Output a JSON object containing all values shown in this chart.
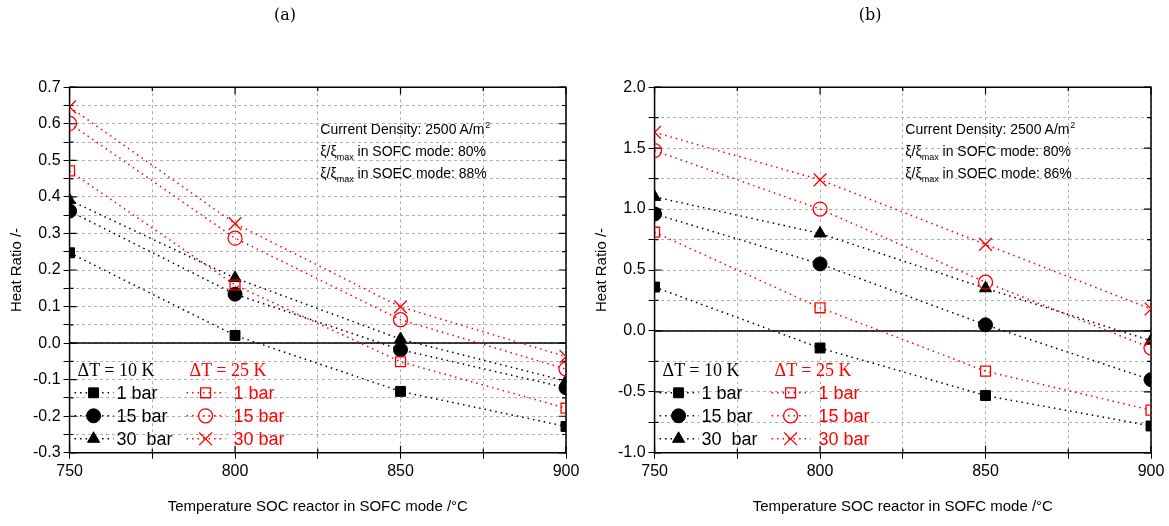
{
  "chart_data": [
    {
      "type": "line",
      "title": "(a)",
      "xlabel": "Temperature SOC reactor in SOFC mode /°C",
      "ylabel": "Heat Ratio /-",
      "x": [
        750,
        800,
        850,
        900
      ],
      "xlim": [
        750,
        900
      ],
      "xticks": [
        750,
        {
          "value": 775,
          "label": null
        },
        800,
        {
          "value": 825,
          "label": null
        },
        850,
        {
          "value": 875,
          "label": null
        },
        900
      ],
      "ylim": [
        -0.3,
        0.7
      ],
      "yticks": [
        -0.3,
        {
          "value": -0.25,
          "label": null
        },
        -0.2,
        {
          "value": -0.15,
          "label": null
        },
        -0.1,
        {
          "value": -0.05,
          "label": null
        },
        {
          "value": 0,
          "label": "0.0"
        },
        {
          "value": 0.05,
          "label": null
        },
        0.1,
        {
          "value": 0.15,
          "label": null
        },
        0.2,
        {
          "value": 0.25,
          "label": null
        },
        0.3,
        {
          "value": 0.35,
          "label": null
        },
        0.4,
        {
          "value": 0.45,
          "label": null
        },
        0.5,
        {
          "value": 0.55,
          "label": null
        },
        0.6,
        {
          "value": 0.65,
          "label": null
        },
        0.7
      ],
      "grid": true,
      "legend": "bottom left",
      "line_style": "dotted",
      "ref_lines": [
        {
          "axis": "y",
          "value": 0,
          "color": "#000000"
        }
      ],
      "annotations": [
        "Current Density: 2500 A/m$^{2}$",
        "ξ/ξ$_{max}$ in SOFC mode: 80%",
        "ξ/ξ$_{max}$ in SOEC mode: 88%",
        "ΔT = 10 K",
        "ΔT = 25 K"
      ],
      "series": [
        {
          "name": "1 bar",
          "color": "#000000",
          "marker": "square",
          "values": [
            0.247,
            0.021,
            -0.132,
            -0.228
          ]
        },
        {
          "name": "15 bar",
          "color": "#000000",
          "marker": "circle",
          "values": [
            0.361,
            0.134,
            -0.018,
            -0.122
          ]
        },
        {
          "name": "30  bar",
          "color": "#000000",
          "marker": "triangle",
          "values": [
            0.391,
            0.178,
            0.011,
            -0.104
          ]
        },
        {
          "name": "1 bar",
          "color": "#ff0000",
          "marker": "square",
          "values": [
            0.471,
            0.159,
            -0.051,
            -0.178
          ]
        },
        {
          "name": "15 bar",
          "color": "#ff0000",
          "marker": "circle",
          "values": [
            0.601,
            0.287,
            0.064,
            -0.071
          ]
        },
        {
          "name": "30 bar",
          "color": "#ff0000",
          "marker": "cross",
          "values": [
            0.646,
            0.327,
            0.099,
            -0.037
          ]
        }
      ]
    },
    {
      "type": "line",
      "title": "(b)",
      "xlabel": "Temperature SOC reactor in SOFC mode /°C",
      "ylabel": "Heat Ratio /-",
      "x": [
        750,
        800,
        850,
        900
      ],
      "xlim": [
        750,
        900
      ],
      "xticks": [
        750,
        {
          "value": 775,
          "label": null
        },
        800,
        {
          "value": 825,
          "label": null
        },
        850,
        {
          "value": 875,
          "label": null
        },
        900
      ],
      "ylim": [
        -1,
        2
      ],
      "yticks": [
        {
          "value": -1,
          "label": "-1.0"
        },
        {
          "value": -0.75,
          "label": null
        },
        -0.5,
        {
          "value": -0.25,
          "label": null
        },
        {
          "value": 0,
          "label": "0.0"
        },
        {
          "value": 0.25,
          "label": null
        },
        0.5,
        {
          "value": 0.75,
          "label": null
        },
        {
          "value": 1,
          "label": "1.0"
        },
        {
          "value": 1.25,
          "label": null
        },
        1.5,
        {
          "value": 1.75,
          "label": null
        },
        {
          "value": 2,
          "label": "2.0"
        }
      ],
      "grid": true,
      "legend": "bottom left",
      "line_style": "dotted",
      "ref_lines": [
        {
          "axis": "y",
          "value": 0,
          "color": "#000000"
        }
      ],
      "annotations": [
        "Current Density: 2500 A/m$^{2}$",
        "ξ/ξ$_{max}$ in SOFC mode: 80%",
        "ξ/ξ$_{max}$ in SOEC mode: 86%",
        "ΔT = 10 K",
        "ΔT = 25 K"
      ],
      "series": [
        {
          "name": "1 bar",
          "color": "#000000",
          "marker": "square",
          "values": [
            0.36,
            -0.14,
            -0.53,
            -0.78
          ]
        },
        {
          "name": "15 bar",
          "color": "#000000",
          "marker": "circle",
          "values": [
            0.96,
            0.55,
            0.05,
            -0.4
          ]
        },
        {
          "name": "30  bar",
          "color": "#000000",
          "marker": "triangle",
          "values": [
            1.1,
            0.8,
            0.35,
            -0.08
          ]
        },
        {
          "name": "1 bar",
          "color": "#ff0000",
          "marker": "square",
          "values": [
            0.81,
            0.19,
            -0.33,
            -0.65
          ]
        },
        {
          "name": "15 bar",
          "color": "#ff0000",
          "marker": "circle",
          "values": [
            1.48,
            1.0,
            0.4,
            -0.14
          ]
        },
        {
          "name": "30 bar",
          "color": "#ff0000",
          "marker": "cross",
          "values": [
            1.63,
            1.24,
            0.71,
            0.18
          ]
        }
      ]
    }
  ]
}
